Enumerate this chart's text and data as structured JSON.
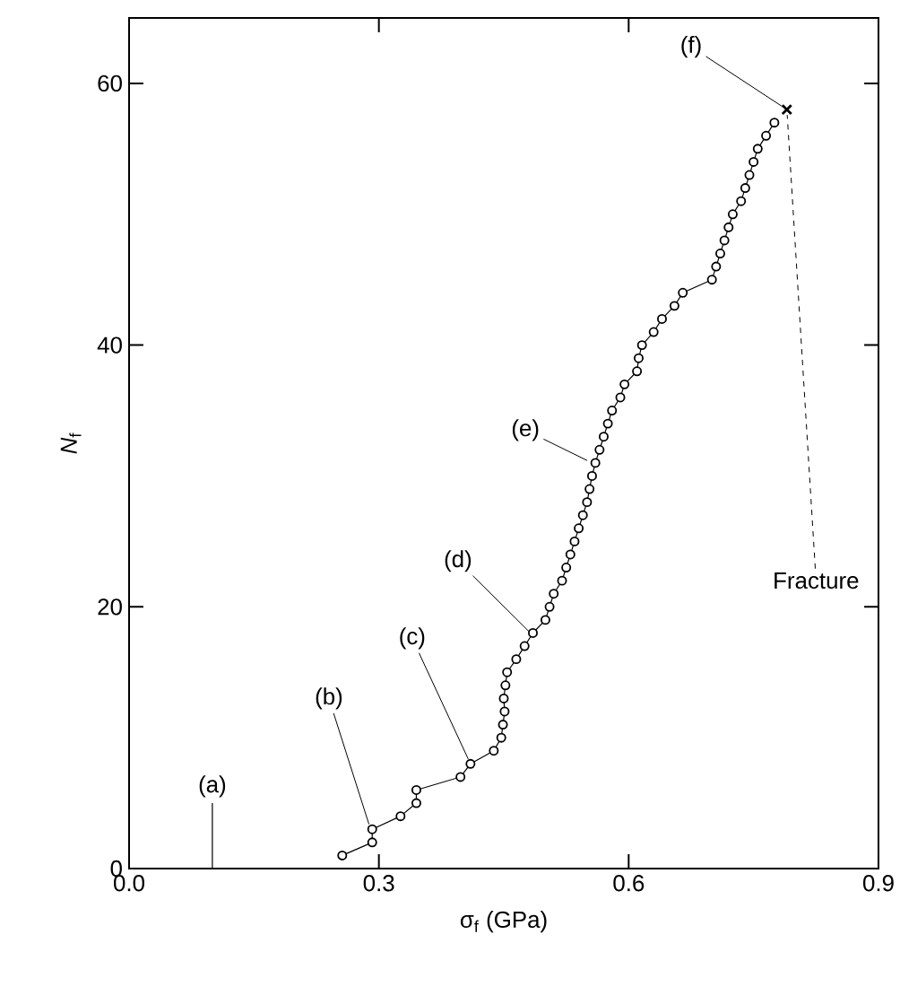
{
  "chart_data": {
    "type": "line",
    "xlabel": "σ$_{f}$ (GPa)",
    "ylabel": "*N*$_{f}$",
    "xlim": [
      0,
      0.9
    ],
    "ylim": [
      0,
      65
    ],
    "xticks": [
      {
        "value": 0,
        "label": "0.0"
      },
      {
        "value": 0.3,
        "label": "0.3"
      },
      {
        "value": 0.6,
        "label": "0.6"
      },
      {
        "value": 0.9,
        "label": "0.9"
      }
    ],
    "yticks": [
      0,
      20,
      40,
      60
    ],
    "marker": "circle",
    "series": [
      {
        "color": "#000000",
        "x": [
          0.256,
          0.292,
          0.292,
          0.326,
          0.345,
          0.345,
          0.398,
          0.41,
          0.438,
          0.447,
          0.449,
          0.451,
          0.45,
          0.452,
          0.454,
          0.465,
          0.475,
          0.485,
          0.5,
          0.505,
          0.51,
          0.52,
          0.525,
          0.53,
          0.535,
          0.54,
          0.545,
          0.55,
          0.553,
          0.556,
          0.56,
          0.565,
          0.57,
          0.575,
          0.58,
          0.59,
          0.595,
          0.61,
          0.612,
          0.616,
          0.63,
          0.64,
          0.655,
          0.665,
          0.7,
          0.705,
          0.71,
          0.715,
          0.72,
          0.725,
          0.735,
          0.74,
          0.745,
          0.75,
          0.755,
          0.765,
          0.775
        ],
        "values": [
          1,
          2,
          3,
          4,
          5,
          6,
          7,
          8,
          9,
          10,
          11,
          12,
          13,
          14,
          15,
          16,
          17,
          18,
          19,
          20,
          21,
          22,
          23,
          24,
          25,
          26,
          27,
          28,
          29,
          30,
          31,
          32,
          33,
          34,
          35,
          36,
          37,
          38,
          39,
          40,
          41,
          42,
          43,
          44,
          45,
          46,
          47,
          48,
          49,
          50,
          51,
          52,
          53,
          54,
          55,
          56,
          57
        ]
      },
      {
        "type": "scatter",
        "marker": "cross",
        "color": "#000000",
        "x": [
          0.79
        ],
        "values": [
          58
        ]
      }
    ],
    "ref_lines": [
      {
        "axis": "x",
        "value": 0.1,
        "label": "(a)"
      }
    ],
    "annotations": [
      {
        "text": "(b)",
        "x": 0.29,
        "y": 3
      },
      {
        "text": "(c)",
        "x": 0.41,
        "y": 8
      },
      {
        "text": "(d)",
        "x": 0.49,
        "y": 17.5
      },
      {
        "text": "(e)",
        "x": 0.556,
        "y": 31
      },
      {
        "text": "(f)",
        "x": 0.79,
        "y": 58
      },
      {
        "text": "Fracture",
        "x": 0.79,
        "y": 58
      }
    ]
  }
}
